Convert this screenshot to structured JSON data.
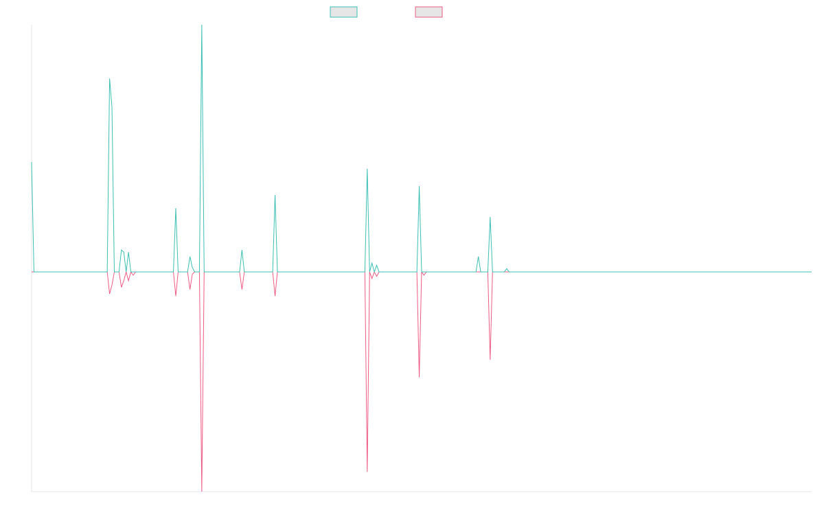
{
  "chart_data": {
    "type": "line",
    "title": "",
    "xlabel": "",
    "ylabel": "",
    "grid": false,
    "legend_placement": "top-center",
    "x_count": 331,
    "ylim": [
      -1,
      1.125
    ],
    "series": [
      {
        "color": "#3bbfb4",
        "points": [
          [
            0,
            0.5
          ],
          [
            1,
            0
          ],
          [
            32,
            0
          ],
          [
            33,
            0.88
          ],
          [
            34,
            0.75
          ],
          [
            35,
            0
          ],
          [
            37,
            0
          ],
          [
            38,
            0.1
          ],
          [
            39,
            0.09
          ],
          [
            40,
            0
          ],
          [
            41,
            0.09
          ],
          [
            42,
            0
          ],
          [
            60,
            0
          ],
          [
            61,
            0.29
          ],
          [
            62,
            0
          ],
          [
            66,
            0
          ],
          [
            67,
            0.07
          ],
          [
            68,
            0.02
          ],
          [
            69,
            0
          ],
          [
            71,
            0
          ],
          [
            72,
            1.125
          ],
          [
            73,
            0
          ],
          [
            88,
            0
          ],
          [
            89,
            0.1
          ],
          [
            90,
            0
          ],
          [
            102,
            0
          ],
          [
            103,
            0.35
          ],
          [
            104,
            0
          ],
          [
            141,
            0
          ],
          [
            142,
            0.47
          ],
          [
            143,
            0
          ],
          [
            144,
            0.04
          ],
          [
            145,
            0
          ],
          [
            146,
            0.03
          ],
          [
            147,
            0
          ],
          [
            163,
            0
          ],
          [
            164,
            0.39
          ],
          [
            165,
            0
          ],
          [
            188,
            0
          ],
          [
            189,
            0.07
          ],
          [
            190,
            0
          ],
          [
            193,
            0
          ],
          [
            194,
            0.25
          ],
          [
            195,
            0
          ],
          [
            200,
            0
          ],
          [
            201,
            0.015
          ],
          [
            202,
            0
          ],
          [
            330,
            0
          ]
        ]
      },
      {
        "color": "#ee5a83",
        "points": [
          [
            0,
            0
          ],
          [
            32,
            0
          ],
          [
            33,
            -0.1
          ],
          [
            34,
            -0.06
          ],
          [
            35,
            0
          ],
          [
            37,
            0
          ],
          [
            38,
            -0.07
          ],
          [
            39,
            -0.04
          ],
          [
            40,
            0
          ],
          [
            41,
            -0.04
          ],
          [
            42,
            0
          ],
          [
            43,
            -0.015
          ],
          [
            44,
            0
          ],
          [
            60,
            0
          ],
          [
            61,
            -0.11
          ],
          [
            62,
            0
          ],
          [
            66,
            0
          ],
          [
            67,
            -0.08
          ],
          [
            68,
            -0.01
          ],
          [
            69,
            0
          ],
          [
            71,
            0
          ],
          [
            72,
            -1
          ],
          [
            73,
            0
          ],
          [
            88,
            0
          ],
          [
            89,
            -0.08
          ],
          [
            90,
            0
          ],
          [
            102,
            0
          ],
          [
            103,
            -0.11
          ],
          [
            104,
            0
          ],
          [
            141,
            0
          ],
          [
            142,
            -0.91
          ],
          [
            143,
            0
          ],
          [
            144,
            -0.03
          ],
          [
            145,
            0
          ],
          [
            146,
            -0.02
          ],
          [
            147,
            0
          ],
          [
            163,
            0
          ],
          [
            164,
            -0.48
          ],
          [
            165,
            0
          ],
          [
            166,
            -0.015
          ],
          [
            167,
            0
          ],
          [
            193,
            0
          ],
          [
            194,
            -0.4
          ],
          [
            195,
            0
          ],
          [
            330,
            0
          ]
        ]
      }
    ]
  }
}
